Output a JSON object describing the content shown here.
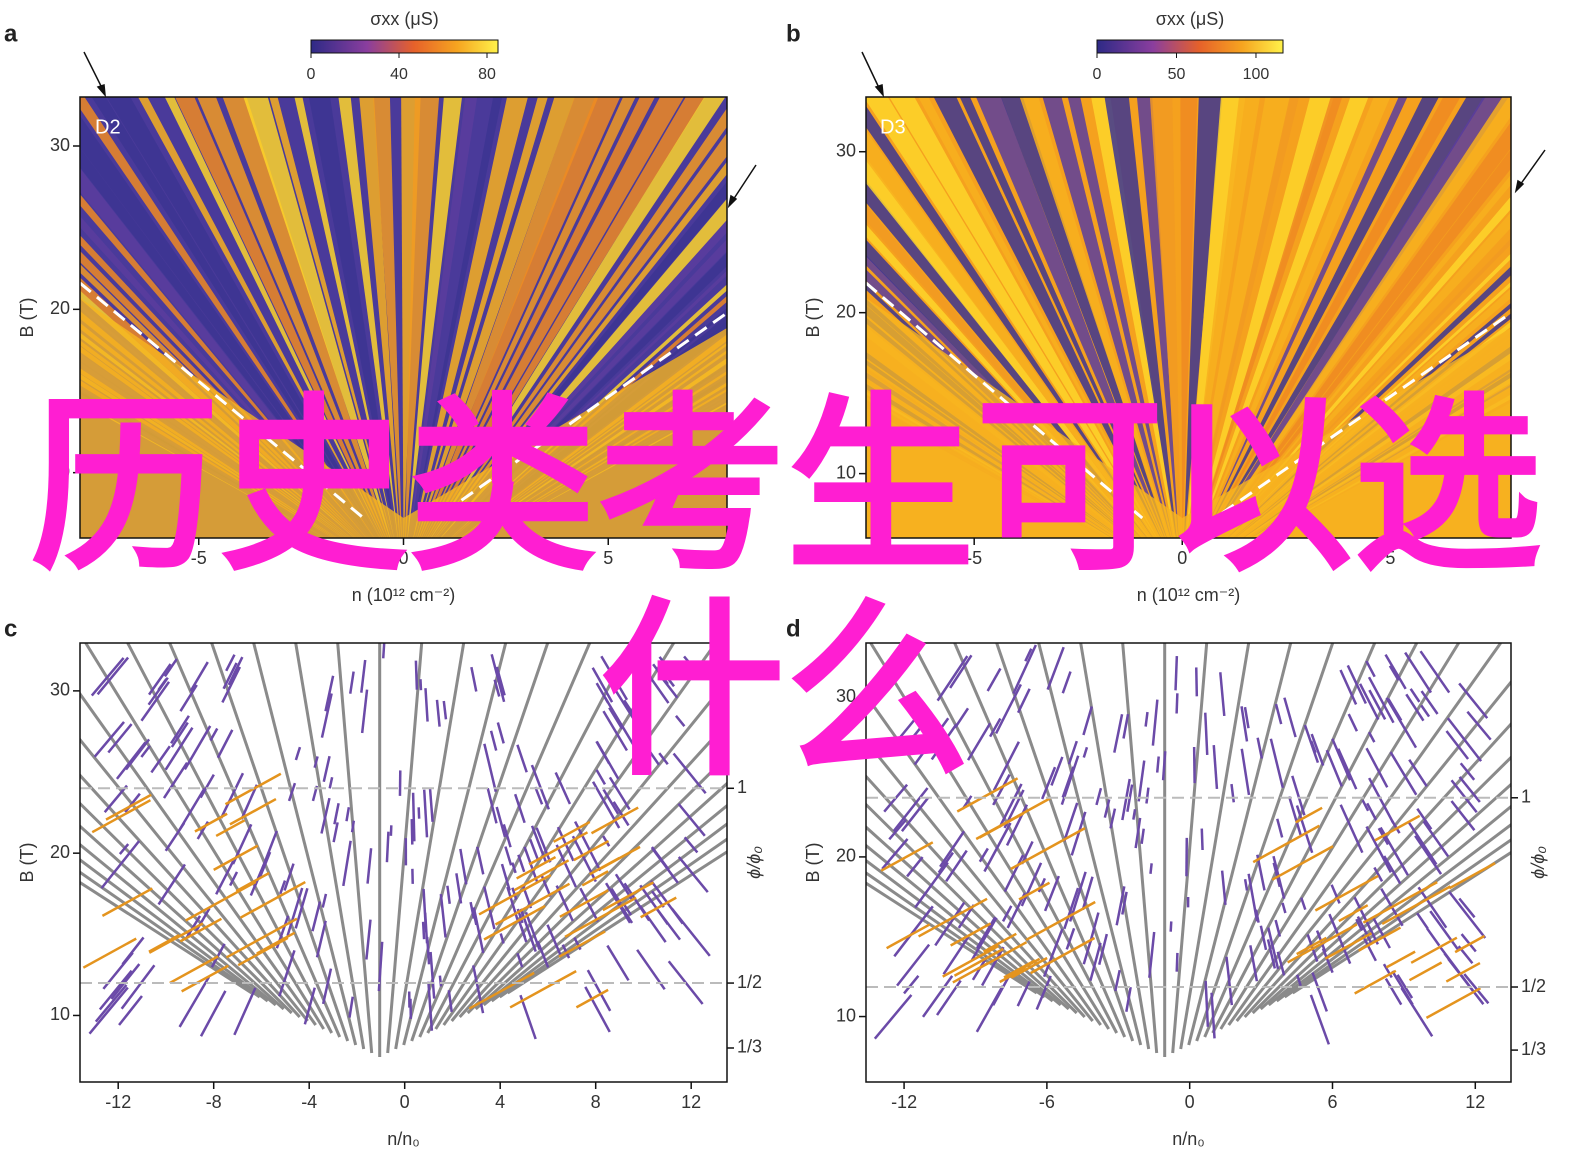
{
  "overlay_text": [
    "历史类考生可以选",
    "什么"
  ],
  "chart_data": [
    {
      "type": "heatmap",
      "panel": "a",
      "label": "D2",
      "xlabel": "n (10¹² cm⁻²)",
      "ylabel": "B (T)",
      "xlim": [
        -7.9,
        7.9
      ],
      "ylim": [
        6,
        33
      ],
      "xticks": [
        -5,
        0,
        5
      ],
      "yticks": [
        10,
        20,
        30
      ],
      "colorbar": {
        "title": "σxx (μS)",
        "lim": [
          0,
          85
        ],
        "ticks": [
          0,
          40,
          80
        ]
      }
    },
    {
      "type": "heatmap",
      "panel": "b",
      "label": "D3",
      "xlabel": "n (10¹² cm⁻²)",
      "ylabel": "B (T)",
      "xlim": [
        -7.6,
        7.9
      ],
      "ylim": [
        6,
        33.4
      ],
      "xticks": [
        -5,
        0,
        5
      ],
      "yticks": [
        10,
        20,
        30
      ],
      "colorbar": {
        "title": "σxx (μS)",
        "lim": [
          0,
          117
        ],
        "ticks": [
          0,
          50,
          100
        ]
      }
    },
    {
      "type": "fan",
      "panel": "c",
      "xlabel": "n/n₀",
      "ylabel": "B (T)",
      "y2label": "ϕ/ϕ₀",
      "xlim": [
        -13.6,
        13.5
      ],
      "ylim": [
        5.9,
        32.95
      ],
      "xticks": [
        -12,
        -8,
        -4,
        0,
        4,
        8,
        12
      ],
      "yticks": [
        10,
        20,
        30
      ],
      "y2lim": [
        0.246,
        1.373
      ],
      "y2ticks": [
        1,
        {
          "value": 0.5,
          "label": "1/2"
        },
        {
          "value": 0.3333,
          "label": "1/3"
        }
      ],
      "y2_dashed": [
        1,
        0.5
      ]
    },
    {
      "type": "fan",
      "panel": "d",
      "xlabel": "n/n₀",
      "ylabel": "B (T)",
      "y2label": "ϕ/ϕ₀",
      "xlim": [
        -13.6,
        13.5
      ],
      "ylim": [
        5.9,
        33.4
      ],
      "xticks": [
        -12,
        -6,
        0,
        6,
        12
      ],
      "yticks": [
        10,
        20,
        30
      ],
      "y2lim": [
        0.249,
        1.409
      ],
      "y2ticks": [
        1,
        {
          "value": 0.5,
          "label": "1/2"
        },
        {
          "value": 0.3333,
          "label": "1/3"
        }
      ],
      "y2_dashed": [
        1,
        0.5
      ]
    }
  ]
}
